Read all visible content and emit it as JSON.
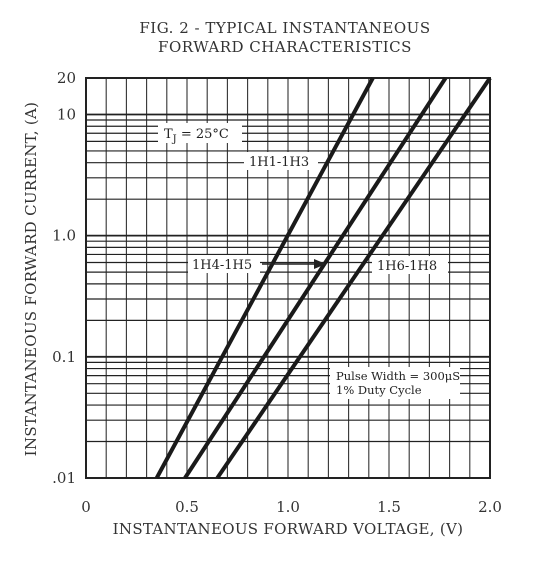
{
  "chart_data": {
    "type": "line",
    "title_lines": [
      "FIG. 2 - TYPICAL INSTANTANEOUS",
      "FORWARD CHARACTERISTICS"
    ],
    "xlabel": "INSTANTANEOUS FORWARD VOLTAGE, (V)",
    "ylabel": "INSTANTANEOUS FORWARD CURRENT, (A)",
    "xlim": [
      0,
      2.0
    ],
    "ylim": [
      0.01,
      20
    ],
    "yscale": "log",
    "x_ticks": [
      {
        "value": 0,
        "label": "0"
      },
      {
        "value": 0.5,
        "label": "0.5"
      },
      {
        "value": 1.0,
        "label": "1.0"
      },
      {
        "value": 1.5,
        "label": "1.5"
      },
      {
        "value": 2.0,
        "label": "2.0"
      }
    ],
    "y_ticks": [
      {
        "value": 0.01,
        "label": ".01"
      },
      {
        "value": 0.1,
        "label": "0.1"
      },
      {
        "value": 1.0,
        "label": "1.0"
      },
      {
        "value": 10,
        "label": "10"
      },
      {
        "value": 20,
        "label": "20"
      }
    ],
    "grid": true,
    "series": [
      {
        "name": "1H1-1H3",
        "points": [
          [
            0.35,
            0.01
          ],
          [
            1.42,
            20
          ]
        ]
      },
      {
        "name": "1H4-1H5",
        "points": [
          [
            0.49,
            0.01
          ],
          [
            1.78,
            20
          ]
        ]
      },
      {
        "name": "1H6-1H8",
        "points": [
          [
            0.65,
            0.01
          ],
          [
            2.0,
            20
          ]
        ]
      }
    ],
    "annotations": {
      "tj": {
        "main": "T",
        "sub": "J",
        "rest": " = 25°C"
      },
      "note_line1": "Pulse Width = 300μS",
      "note_line2": "1% Duty Cycle"
    }
  }
}
